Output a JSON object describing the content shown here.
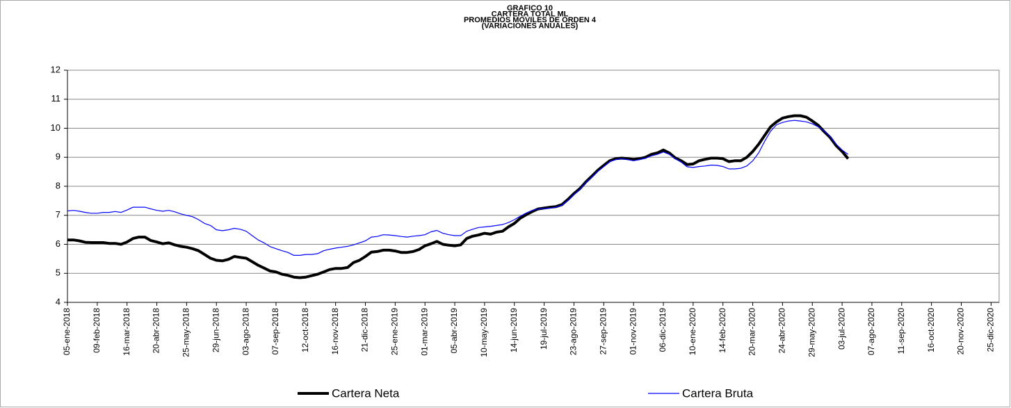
{
  "chart_data": {
    "type": "line",
    "title": [
      "GRAFICO 10",
      "CARTERA TOTAL ML",
      "PROMEDIOS MOVILES DE ORDEN 4",
      "(VARIACIONES ANUALES)"
    ],
    "categories": [
      "05-ene-2018",
      null,
      null,
      null,
      null,
      "09-feb-2018",
      null,
      null,
      null,
      null,
      "16-mar-2018",
      null,
      null,
      null,
      null,
      "20-abr-2018",
      null,
      null,
      null,
      null,
      "25-may-2018",
      null,
      null,
      null,
      null,
      "29-jun-2018",
      null,
      null,
      null,
      null,
      "03-ago-2018",
      null,
      null,
      null,
      null,
      "07-sep-2018",
      null,
      null,
      null,
      null,
      "12-oct-2018",
      null,
      null,
      null,
      null,
      "16-nov-2018",
      null,
      null,
      null,
      null,
      "21-dic-2018",
      null,
      null,
      null,
      null,
      "25-ene-2019",
      null,
      null,
      null,
      null,
      "01-mar-2019",
      null,
      null,
      null,
      null,
      "05-abr-2019",
      null,
      null,
      null,
      null,
      "10-may-2019",
      null,
      null,
      null,
      null,
      "14-jun-2019",
      null,
      null,
      null,
      null,
      "19-jul-2019",
      null,
      null,
      null,
      null,
      "23-ago-2019",
      null,
      null,
      null,
      null,
      "27-sep-2019",
      null,
      null,
      null,
      null,
      "01-nov-2019",
      null,
      null,
      null,
      null,
      "06-dic-2019",
      null,
      null,
      null,
      null,
      "10-ene-2020",
      null,
      null,
      null,
      null,
      "14-feb-2020",
      null,
      null,
      null,
      null,
      "20-mar-2020",
      null,
      null,
      null,
      null,
      "24-abr-2020",
      null,
      null,
      null,
      null,
      "29-may-2020",
      null,
      null,
      null,
      null,
      "03-jul-2020",
      null,
      null,
      null,
      null,
      "07-ago-2020",
      null,
      null,
      null,
      null,
      "11-sep-2020",
      null,
      null,
      null,
      null,
      "16-oct-2020",
      null,
      null,
      null,
      null,
      "20-nov-2020",
      null,
      null,
      null,
      null,
      "25-dic-2020",
      null
    ],
    "series": [
      {
        "name": "Cartera Neta",
        "color": "#000000",
        "width": 4,
        "values": [
          6.15,
          6.15,
          6.12,
          6.07,
          6.06,
          6.06,
          6.06,
          6.03,
          6.03,
          6.0,
          6.08,
          6.2,
          6.25,
          6.25,
          6.13,
          6.08,
          6.02,
          6.05,
          5.98,
          5.93,
          5.9,
          5.85,
          5.78,
          5.65,
          5.52,
          5.45,
          5.43,
          5.48,
          5.58,
          5.55,
          5.52,
          5.4,
          5.28,
          5.18,
          5.08,
          5.05,
          4.97,
          4.93,
          4.87,
          4.85,
          4.87,
          4.92,
          4.97,
          5.05,
          5.13,
          5.17,
          5.17,
          5.2,
          5.37,
          5.45,
          5.58,
          5.73,
          5.75,
          5.8,
          5.8,
          5.77,
          5.72,
          5.72,
          5.75,
          5.82,
          5.95,
          6.02,
          6.1,
          6.0,
          5.97,
          5.95,
          5.98,
          6.2,
          6.28,
          6.32,
          6.38,
          6.35,
          6.42,
          6.45,
          6.6,
          6.72,
          6.9,
          7.02,
          7.13,
          7.22,
          7.25,
          7.28,
          7.3,
          7.37,
          7.55,
          7.75,
          7.92,
          8.15,
          8.35,
          8.55,
          8.72,
          8.88,
          8.95,
          8.97,
          8.95,
          8.93,
          8.95,
          9.0,
          9.1,
          9.15,
          9.25,
          9.15,
          8.98,
          8.88,
          8.75,
          8.77,
          8.88,
          8.93,
          8.97,
          8.97,
          8.95,
          8.85,
          8.88,
          8.88,
          9.0,
          9.2,
          9.45,
          9.75,
          10.05,
          10.22,
          10.35,
          10.4,
          10.43,
          10.43,
          10.38,
          10.25,
          10.1,
          9.88,
          9.68,
          9.4,
          9.2,
          8.95,
          null,
          null,
          null,
          null,
          null,
          null,
          null,
          null,
          null,
          null,
          null,
          null,
          null,
          null,
          null,
          null,
          null,
          null,
          null,
          null,
          null,
          null,
          null,
          null,
          null
        ]
      },
      {
        "name": "Cartera Bruta",
        "color": "#0000ff",
        "width": 1.2,
        "values": [
          7.15,
          7.17,
          7.14,
          7.1,
          7.07,
          7.07,
          7.1,
          7.1,
          7.13,
          7.1,
          7.18,
          7.28,
          7.28,
          7.28,
          7.22,
          7.17,
          7.14,
          7.17,
          7.12,
          7.05,
          7.0,
          6.95,
          6.85,
          6.72,
          6.65,
          6.5,
          6.47,
          6.5,
          6.55,
          6.52,
          6.45,
          6.3,
          6.15,
          6.05,
          5.92,
          5.85,
          5.78,
          5.72,
          5.62,
          5.62,
          5.65,
          5.65,
          5.68,
          5.78,
          5.83,
          5.87,
          5.9,
          5.93,
          5.98,
          6.05,
          6.12,
          6.25,
          6.27,
          6.33,
          6.32,
          6.3,
          6.27,
          6.25,
          6.28,
          6.3,
          6.33,
          6.43,
          6.48,
          6.38,
          6.33,
          6.3,
          6.3,
          6.45,
          6.52,
          6.58,
          6.6,
          6.62,
          6.65,
          6.68,
          6.75,
          6.85,
          6.97,
          7.08,
          7.17,
          7.22,
          7.23,
          7.25,
          7.28,
          7.35,
          7.52,
          7.72,
          7.9,
          8.13,
          8.32,
          8.52,
          8.68,
          8.85,
          8.92,
          8.95,
          8.92,
          8.88,
          8.92,
          8.97,
          9.05,
          9.1,
          9.18,
          9.1,
          8.95,
          8.83,
          8.67,
          8.65,
          8.68,
          8.7,
          8.73,
          8.72,
          8.68,
          8.6,
          8.6,
          8.62,
          8.7,
          8.88,
          9.15,
          9.55,
          9.9,
          10.12,
          10.2,
          10.25,
          10.27,
          10.25,
          10.22,
          10.15,
          10.05,
          9.9,
          9.7,
          9.45,
          9.25,
          9.1,
          null,
          null,
          null,
          null,
          null,
          null,
          null,
          null,
          null,
          null,
          null,
          null,
          null,
          null,
          null,
          null,
          null,
          null,
          null,
          null,
          null,
          null,
          null,
          null,
          null
        ]
      }
    ],
    "ylim": [
      4,
      12
    ],
    "yticks": [
      4,
      5,
      6,
      7,
      8,
      9,
      10,
      11,
      12
    ],
    "grid": true,
    "legend": "bottom"
  }
}
